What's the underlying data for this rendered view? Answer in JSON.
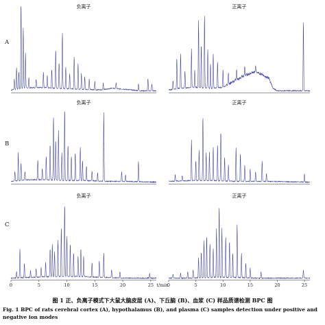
{
  "figure": {
    "caption_cn": "图 1   正、负离子模式下大鼠大脑皮层 (A)、下丘脑 (B)、血浆 (C) 样品质谱检测 BPC 图",
    "caption_en": "Fig. 1   BPC of rats cerebral cortex (A), hypothalamus (B), and plasma (C) samples detection under positive and negative ion modes"
  },
  "chart_data": {
    "type": "line",
    "xlabel": "t/min",
    "x_ticks": [
      "0",
      "5",
      "10",
      "15",
      "20",
      "25"
    ],
    "xlim": [
      0,
      26
    ],
    "ylim": [
      0,
      1
    ],
    "rows": [
      "A",
      "B",
      "C"
    ],
    "columns": [
      "负离子",
      "正离子"
    ],
    "series_color": "#3a3f9c",
    "panels": [
      {
        "row": "A",
        "mode": "负离子",
        "baseline": [
          [
            0,
            0.03
          ],
          [
            2,
            0.05
          ],
          [
            5,
            0.06
          ],
          [
            8,
            0.05
          ],
          [
            12,
            0.04
          ],
          [
            16,
            0.03
          ],
          [
            18,
            0.05
          ],
          [
            20,
            0.04
          ],
          [
            23,
            0.02
          ],
          [
            26,
            0.02
          ]
        ],
        "peaks": [
          [
            0.6,
            0.12
          ],
          [
            1.0,
            0.25
          ],
          [
            1.4,
            0.2
          ],
          [
            1.8,
            1.0
          ],
          [
            2.2,
            0.7
          ],
          [
            2.6,
            0.4
          ],
          [
            3.2,
            0.12
          ],
          [
            4.5,
            0.1
          ],
          [
            5.8,
            0.18
          ],
          [
            6.5,
            0.14
          ],
          [
            7.3,
            0.22
          ],
          [
            8.0,
            0.45
          ],
          [
            8.6,
            0.3
          ],
          [
            9.2,
            0.65
          ],
          [
            9.8,
            0.25
          ],
          [
            10.5,
            0.18
          ],
          [
            11.3,
            0.38
          ],
          [
            12.0,
            0.3
          ],
          [
            12.6,
            0.18
          ],
          [
            13.2,
            0.15
          ],
          [
            14.0,
            0.12
          ],
          [
            15.0,
            0.1
          ],
          [
            16.5,
            0.08
          ],
          [
            18.8,
            0.07
          ],
          [
            22.8,
            0.08
          ],
          [
            24.5,
            0.14
          ],
          [
            25.2,
            0.08
          ]
        ]
      },
      {
        "row": "A",
        "mode": "正离子",
        "baseline": [
          [
            0,
            0.03
          ],
          [
            2,
            0.05
          ],
          [
            5,
            0.06
          ],
          [
            8,
            0.05
          ],
          [
            10,
            0.06
          ],
          [
            12,
            0.13
          ],
          [
            14,
            0.2
          ],
          [
            16,
            0.24
          ],
          [
            17.5,
            0.2
          ],
          [
            18.5,
            0.16
          ],
          [
            19.2,
            0.05
          ],
          [
            20,
            0.02
          ],
          [
            26,
            0.02
          ]
        ],
        "peaks": [
          [
            0.8,
            0.1
          ],
          [
            1.5,
            0.35
          ],
          [
            2.2,
            0.4
          ],
          [
            3.0,
            0.2
          ],
          [
            4.2,
            0.45
          ],
          [
            4.8,
            0.2
          ],
          [
            5.5,
            0.78
          ],
          [
            6.0,
            0.5
          ],
          [
            6.6,
            0.85
          ],
          [
            7.2,
            0.45
          ],
          [
            7.7,
            0.28
          ],
          [
            8.2,
            0.4
          ],
          [
            9.0,
            0.3
          ],
          [
            10.0,
            0.2
          ],
          [
            11.0,
            0.15
          ],
          [
            12.5,
            0.12
          ],
          [
            14.0,
            0.1
          ],
          [
            16.0,
            0.08
          ],
          [
            24.8,
            0.8
          ]
        ]
      },
      {
        "row": "B",
        "mode": "负离子",
        "baseline": [
          [
            0,
            0.03
          ],
          [
            3,
            0.05
          ],
          [
            6,
            0.05
          ],
          [
            9,
            0.04
          ],
          [
            13,
            0.04
          ],
          [
            17,
            0.03
          ],
          [
            20,
            0.03
          ],
          [
            26,
            0.02
          ]
        ],
        "peaks": [
          [
            0.7,
            0.12
          ],
          [
            1.3,
            0.35
          ],
          [
            1.8,
            0.22
          ],
          [
            2.5,
            0.1
          ],
          [
            4.8,
            0.25
          ],
          [
            5.6,
            0.14
          ],
          [
            6.3,
            0.3
          ],
          [
            7.0,
            0.45
          ],
          [
            7.6,
            0.8
          ],
          [
            8.0,
            0.5
          ],
          [
            8.5,
            0.62
          ],
          [
            9.1,
            0.35
          ],
          [
            9.6,
            0.9
          ],
          [
            10.2,
            0.45
          ],
          [
            10.8,
            0.3
          ],
          [
            11.5,
            0.35
          ],
          [
            12.4,
            0.42
          ],
          [
            12.8,
            0.25
          ],
          [
            13.5,
            0.18
          ],
          [
            14.5,
            0.12
          ],
          [
            15.5,
            0.1
          ],
          [
            16.6,
            0.85
          ],
          [
            19.8,
            0.12
          ],
          [
            20.5,
            0.08
          ],
          [
            22.8,
            0.25
          ]
        ]
      },
      {
        "row": "B",
        "mode": "正离子",
        "baseline": [
          [
            0,
            0.03
          ],
          [
            4,
            0.04
          ],
          [
            8,
            0.04
          ],
          [
            12,
            0.03
          ],
          [
            18,
            0.03
          ],
          [
            26,
            0.02
          ]
        ],
        "peaks": [
          [
            1.2,
            0.08
          ],
          [
            2.5,
            0.06
          ],
          [
            4.2,
            0.5
          ],
          [
            5.0,
            0.25
          ],
          [
            5.6,
            0.38
          ],
          [
            6.3,
            0.8
          ],
          [
            6.9,
            0.35
          ],
          [
            7.5,
            0.35
          ],
          [
            8.2,
            0.42
          ],
          [
            9.0,
            0.45
          ],
          [
            9.6,
            0.62
          ],
          [
            10.3,
            0.3
          ],
          [
            11.0,
            0.2
          ],
          [
            12.4,
            0.42
          ],
          [
            13.2,
            0.35
          ],
          [
            14.0,
            0.2
          ],
          [
            15.0,
            0.15
          ],
          [
            16.0,
            0.12
          ],
          [
            17.2,
            0.25
          ],
          [
            18.0,
            0.1
          ],
          [
            25.0,
            0.1
          ]
        ]
      },
      {
        "row": "C",
        "mode": "负离子",
        "baseline": [
          [
            0,
            0.02
          ],
          [
            4,
            0.03
          ],
          [
            8,
            0.04
          ],
          [
            12,
            0.04
          ],
          [
            16,
            0.03
          ],
          [
            20,
            0.02
          ],
          [
            26,
            0.02
          ]
        ],
        "peaks": [
          [
            1.0,
            0.08
          ],
          [
            1.6,
            0.35
          ],
          [
            2.4,
            0.18
          ],
          [
            3.5,
            0.08
          ],
          [
            4.5,
            0.1
          ],
          [
            5.4,
            0.12
          ],
          [
            6.2,
            0.18
          ],
          [
            7.0,
            0.35
          ],
          [
            7.4,
            0.4
          ],
          [
            7.8,
            0.3
          ],
          [
            8.4,
            0.45
          ],
          [
            9.0,
            0.6
          ],
          [
            9.6,
            0.9
          ],
          [
            10.0,
            0.5
          ],
          [
            10.6,
            0.4
          ],
          [
            11.2,
            0.3
          ],
          [
            12.0,
            0.25
          ],
          [
            12.5,
            0.35
          ],
          [
            13.0,
            0.25
          ],
          [
            14.5,
            0.18
          ],
          [
            15.8,
            0.2
          ],
          [
            16.6,
            0.3
          ],
          [
            18.0,
            0.1
          ],
          [
            19.5,
            0.08
          ],
          [
            24.8,
            0.06
          ]
        ]
      },
      {
        "row": "C",
        "mode": "正离子",
        "baseline": [
          [
            0,
            0.02
          ],
          [
            4,
            0.02
          ],
          [
            8,
            0.03
          ],
          [
            12,
            0.03
          ],
          [
            16,
            0.02
          ],
          [
            26,
            0.02
          ]
        ],
        "peaks": [
          [
            0.8,
            0.05
          ],
          [
            2.2,
            0.06
          ],
          [
            3.5,
            0.08
          ],
          [
            4.5,
            0.1
          ],
          [
            5.5,
            0.25
          ],
          [
            6.0,
            0.32
          ],
          [
            6.5,
            0.45
          ],
          [
            7.0,
            0.52
          ],
          [
            7.6,
            0.42
          ],
          [
            8.2,
            0.35
          ],
          [
            8.8,
            0.6
          ],
          [
            9.3,
            0.88
          ],
          [
            9.8,
            0.6
          ],
          [
            10.5,
            0.5
          ],
          [
            11.2,
            0.45
          ],
          [
            11.8,
            0.3
          ],
          [
            12.6,
            0.65
          ],
          [
            13.4,
            0.3
          ],
          [
            14.2,
            0.18
          ],
          [
            15.0,
            0.12
          ],
          [
            17.0,
            0.08
          ],
          [
            24.8,
            0.1
          ]
        ]
      }
    ]
  }
}
